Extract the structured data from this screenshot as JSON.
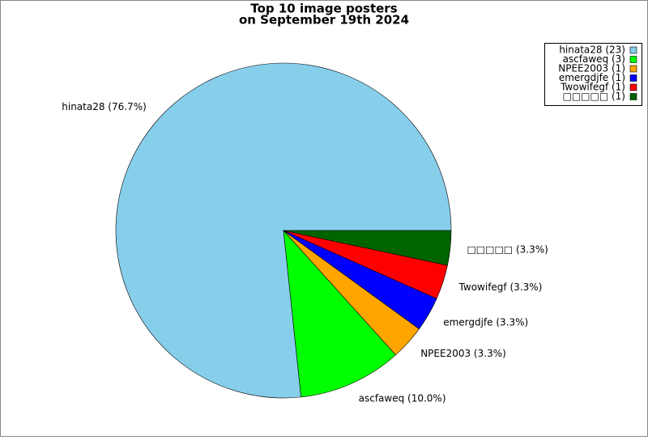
{
  "chart_data": {
    "type": "pie",
    "title": [
      "Top 10 image posters",
      "on September 19th 2024"
    ],
    "categories": [
      "hinata28",
      "ascfaweq",
      "NPEE2003",
      "emergdjfe",
      "Twowifegf",
      "□□□□□"
    ],
    "values": [
      23,
      3,
      1,
      1,
      1,
      1
    ],
    "slice_labels": [
      "hinata28 (76.7%)",
      "ascfaweq (10.0%)",
      "NPEE2003 (3.3%)",
      "emergdjfe (3.3%)",
      "Twowifegf (3.3%)",
      "□□□□□ (3.3%)"
    ],
    "legend_labels": [
      "hinata28 (23)",
      "ascfaweq (3)",
      "NPEE2003 (1)",
      "emergdjfe (1)",
      "Twowifegf (1)",
      "□□□□□ (1)"
    ],
    "colors": [
      "#87ceeb",
      "#00ff00",
      "#ffa500",
      "#0000ff",
      "#ff0000",
      "#006400"
    ],
    "start_angle": 0,
    "counterclockwise": true,
    "legend": "upper right"
  }
}
